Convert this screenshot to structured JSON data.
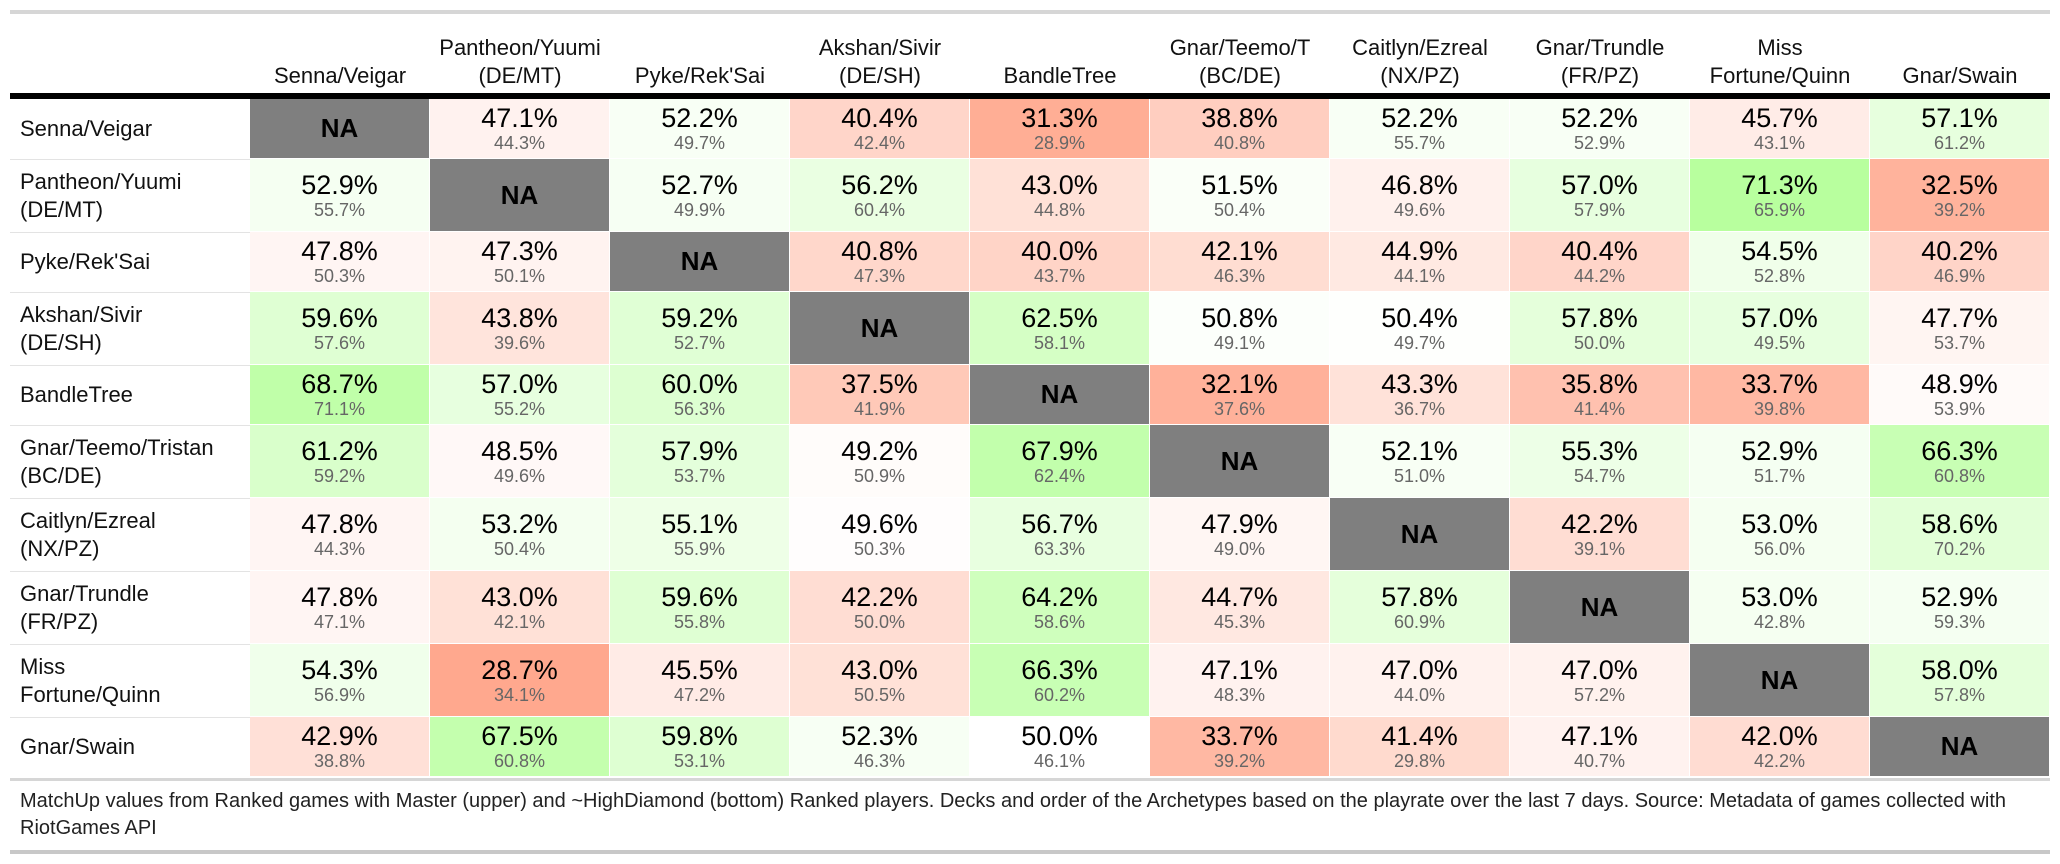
{
  "chart_data": {
    "type": "heatmap",
    "columns": [
      "Senna/Veigar",
      "Pantheon/Yuumi\n(DE/MT)",
      "Pyke/Rek'Sai",
      "Akshan/Sivir\n(DE/SH)",
      "BandleTree",
      "Gnar/Teemo/T\n(BC/DE)",
      "Caitlyn/Ezreal\n(NX/PZ)",
      "Gnar/Trundle\n(FR/PZ)",
      "Miss\nFortune/Quinn",
      "Gnar/Swain"
    ],
    "rows": [
      "Senna/Veigar",
      "Pantheon/Yuumi\n(DE/MT)",
      "Pyke/Rek'Sai",
      "Akshan/Sivir\n(DE/SH)",
      "BandleTree",
      "Gnar/Teemo/Tristan\n(BC/DE)",
      "Caitlyn/Ezreal\n(NX/PZ)",
      "Gnar/Trundle\n(FR/PZ)",
      "Miss\nFortune/Quinn",
      "Gnar/Swain"
    ],
    "na_label": "NA",
    "upper": [
      [
        null,
        47.1,
        52.2,
        40.4,
        31.3,
        38.8,
        52.2,
        52.2,
        45.7,
        57.1
      ],
      [
        52.9,
        null,
        52.7,
        56.2,
        43.0,
        51.5,
        46.8,
        57.0,
        71.3,
        32.5
      ],
      [
        47.8,
        47.3,
        null,
        40.8,
        40.0,
        42.1,
        44.9,
        40.4,
        54.5,
        40.2
      ],
      [
        59.6,
        43.8,
        59.2,
        null,
        62.5,
        50.8,
        50.4,
        57.8,
        57.0,
        47.7
      ],
      [
        68.7,
        57.0,
        60.0,
        37.5,
        null,
        32.1,
        43.3,
        35.8,
        33.7,
        48.9
      ],
      [
        61.2,
        48.5,
        57.9,
        49.2,
        67.9,
        null,
        52.1,
        55.3,
        52.9,
        66.3
      ],
      [
        47.8,
        53.2,
        55.1,
        49.6,
        56.7,
        47.9,
        null,
        42.2,
        53.0,
        58.6
      ],
      [
        47.8,
        43.0,
        59.6,
        42.2,
        64.2,
        44.7,
        57.8,
        null,
        53.0,
        52.9
      ],
      [
        54.3,
        28.7,
        45.5,
        43.0,
        66.3,
        47.1,
        47.0,
        47.0,
        null,
        58.0
      ],
      [
        42.9,
        67.5,
        59.8,
        52.3,
        50.0,
        33.7,
        41.4,
        47.1,
        42.0,
        null
      ]
    ],
    "lower": [
      [
        null,
        44.3,
        49.7,
        42.4,
        28.9,
        40.8,
        55.7,
        52.9,
        43.1,
        61.2
      ],
      [
        55.7,
        null,
        49.9,
        60.4,
        44.8,
        50.4,
        49.6,
        57.9,
        65.9,
        39.2
      ],
      [
        50.3,
        50.1,
        null,
        47.3,
        43.7,
        46.3,
        44.1,
        44.2,
        52.8,
        46.9
      ],
      [
        57.6,
        39.6,
        52.7,
        null,
        58.1,
        49.1,
        49.7,
        50.0,
        49.5,
        53.7
      ],
      [
        71.1,
        55.2,
        56.3,
        41.9,
        null,
        37.6,
        36.7,
        41.4,
        39.8,
        53.9
      ],
      [
        59.2,
        49.6,
        53.7,
        50.9,
        62.4,
        null,
        51.0,
        54.7,
        51.7,
        60.8
      ],
      [
        44.3,
        50.4,
        55.9,
        50.3,
        63.3,
        49.0,
        null,
        39.1,
        56.0,
        70.2
      ],
      [
        47.1,
        42.1,
        55.8,
        50.0,
        58.6,
        45.3,
        60.9,
        null,
        42.8,
        59.3
      ],
      [
        56.9,
        34.1,
        47.2,
        50.5,
        60.2,
        48.3,
        44.0,
        57.2,
        null,
        57.8
      ],
      [
        38.8,
        60.8,
        53.1,
        46.3,
        46.1,
        39.2,
        29.8,
        40.7,
        42.2,
        null
      ]
    ],
    "unit": "%",
    "color_scale": {
      "low": "#ffa88e",
      "mid": "#ffffff",
      "high": "#b8ff9e",
      "na": "#7f7f7f"
    },
    "caption": "MatchUp values from Ranked games with Master (upper) and ~HighDiamond (bottom) Ranked players. Decks and order of the Archetypes based on the playrate over the last 7 days. Source: Metadata of games collected with RiotGames API"
  }
}
